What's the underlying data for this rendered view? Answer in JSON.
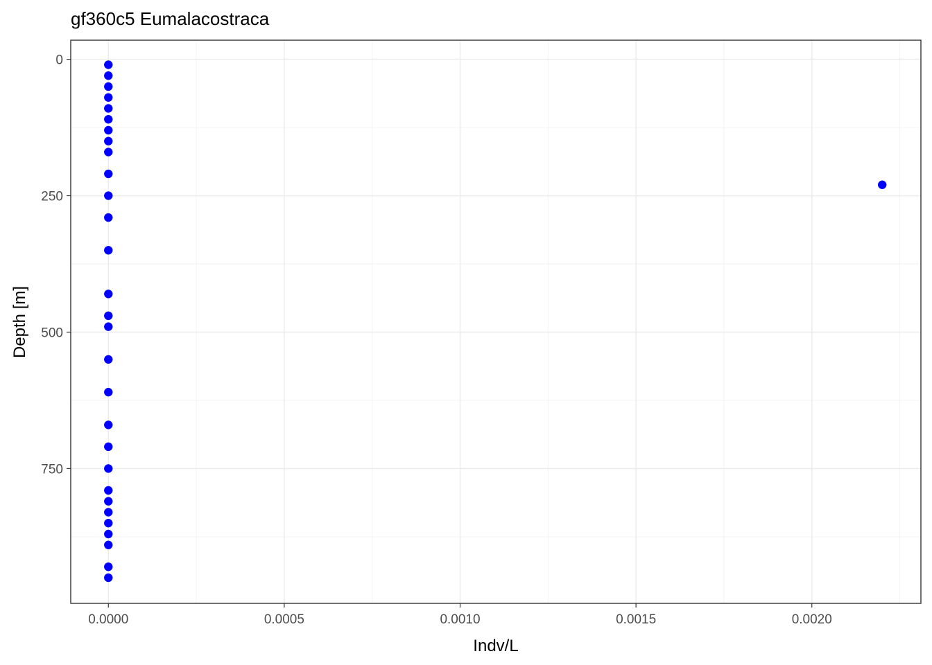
{
  "chart_data": {
    "type": "scatter",
    "title": "gf360c5 Eumalacostraca",
    "xlabel": "Indv/L",
    "ylabel": "Depth [m]",
    "xlim": [
      -0.000107,
      0.00231
    ],
    "ylim": [
      -35,
      997
    ],
    "y_reversed": true,
    "x_ticks": [
      0,
      0.0005,
      0.001,
      0.0015,
      0.002
    ],
    "x_tick_labels": [
      "0.0000",
      "0.0005",
      "0.0010",
      "0.0015",
      "0.0020"
    ],
    "y_ticks": [
      0,
      250,
      500,
      750
    ],
    "y_tick_labels": [
      "0",
      "250",
      "500",
      "750"
    ],
    "grid": true,
    "point_color": "#0000ff",
    "x": [
      0,
      0,
      0,
      0,
      0,
      0,
      0,
      0,
      0,
      0,
      0.0022,
      0,
      0,
      0,
      0,
      0,
      0,
      0,
      0,
      0,
      0,
      0,
      0,
      0,
      0,
      0,
      0,
      0,
      0,
      0
    ],
    "y": [
      10,
      30,
      50,
      70,
      90,
      110,
      130,
      150,
      170,
      210,
      230,
      250,
      290,
      350,
      430,
      470,
      490,
      550,
      610,
      670,
      710,
      750,
      790,
      810,
      830,
      850,
      870,
      890,
      930,
      950
    ]
  }
}
